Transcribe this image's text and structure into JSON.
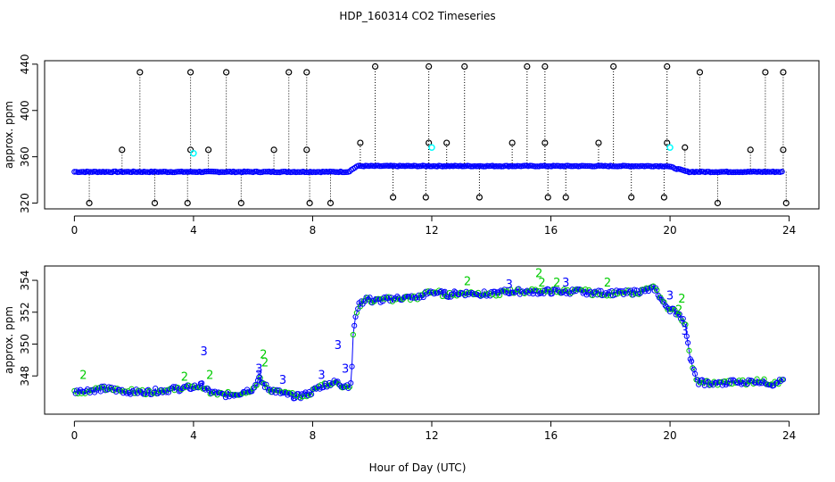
{
  "figure_title": "HDP_160314  CO2 Timeseries",
  "shared_xlabel": "Hour of Day (UTC)",
  "colors": {
    "frame": "#000000",
    "series_blue": "#0000ff",
    "series_green": "#00cc00",
    "series_cyan": "#00ffff",
    "outlier": "#000000"
  },
  "chart_data": [
    {
      "type": "scatter",
      "title": "",
      "xlabel": "",
      "ylabel": "approx. ppm",
      "xlim": [
        -1,
        25
      ],
      "ylim": [
        315,
        443
      ],
      "xticks": [
        0,
        4,
        8,
        12,
        16,
        20,
        24
      ],
      "yticks": [
        320,
        360,
        400,
        440
      ],
      "baseline_series": [
        {
          "x": 0.0,
          "y": 347
        },
        {
          "x": 9.2,
          "y": 347
        },
        {
          "x": 9.5,
          "y": 352
        },
        {
          "x": 19.9,
          "y": 352
        },
        {
          "x": 20.6,
          "y": 347
        },
        {
          "x": 23.8,
          "y": 347
        }
      ],
      "outlier_spikes": [
        {
          "x": 0.5,
          "y": 320
        },
        {
          "x": 1.6,
          "y": 366
        },
        {
          "x": 2.2,
          "y": 433
        },
        {
          "x": 2.7,
          "y": 320
        },
        {
          "x": 3.8,
          "y": 320
        },
        {
          "x": 3.9,
          "y": 366
        },
        {
          "x": 3.9,
          "y": 433
        },
        {
          "x": 4.5,
          "y": 366
        },
        {
          "x": 5.1,
          "y": 433
        },
        {
          "x": 5.6,
          "y": 320
        },
        {
          "x": 6.7,
          "y": 366
        },
        {
          "x": 7.2,
          "y": 433
        },
        {
          "x": 7.8,
          "y": 433
        },
        {
          "x": 7.8,
          "y": 366
        },
        {
          "x": 7.9,
          "y": 320
        },
        {
          "x": 8.6,
          "y": 320
        },
        {
          "x": 9.6,
          "y": 372
        },
        {
          "x": 10.1,
          "y": 438
        },
        {
          "x": 10.7,
          "y": 325
        },
        {
          "x": 11.8,
          "y": 325
        },
        {
          "x": 11.9,
          "y": 372
        },
        {
          "x": 11.9,
          "y": 438
        },
        {
          "x": 12.5,
          "y": 372
        },
        {
          "x": 13.1,
          "y": 438
        },
        {
          "x": 13.6,
          "y": 325
        },
        {
          "x": 14.7,
          "y": 372
        },
        {
          "x": 15.2,
          "y": 438
        },
        {
          "x": 15.8,
          "y": 438
        },
        {
          "x": 15.8,
          "y": 372
        },
        {
          "x": 15.9,
          "y": 325
        },
        {
          "x": 16.5,
          "y": 325
        },
        {
          "x": 17.6,
          "y": 372
        },
        {
          "x": 18.1,
          "y": 438
        },
        {
          "x": 18.7,
          "y": 325
        },
        {
          "x": 19.8,
          "y": 325
        },
        {
          "x": 19.9,
          "y": 372
        },
        {
          "x": 19.9,
          "y": 438
        },
        {
          "x": 20.5,
          "y": 368
        },
        {
          "x": 21.0,
          "y": 433
        },
        {
          "x": 21.6,
          "y": 320
        },
        {
          "x": 22.7,
          "y": 366
        },
        {
          "x": 23.2,
          "y": 433
        },
        {
          "x": 23.8,
          "y": 433
        },
        {
          "x": 23.8,
          "y": 366
        },
        {
          "x": 23.9,
          "y": 320
        }
      ],
      "cyan_markers": [
        {
          "x": 4.0,
          "y": 363
        },
        {
          "x": 12.0,
          "y": 368
        },
        {
          "x": 20.0,
          "y": 368
        }
      ]
    },
    {
      "type": "scatter",
      "title": "",
      "xlabel": "Hour of Day (UTC)",
      "ylabel": "approx. ppm",
      "xlim": [
        -1,
        25
      ],
      "ylim": [
        345.6,
        354.9
      ],
      "xticks": [
        0,
        4,
        8,
        12,
        16,
        20,
        24
      ],
      "yticks": [
        348,
        350,
        352,
        354
      ],
      "series": [
        {
          "name": "CO2",
          "x": [
            0.0,
            0.5,
            1.0,
            1.5,
            2.0,
            2.5,
            3.0,
            3.5,
            4.0,
            4.3,
            4.5,
            5.0,
            5.5,
            6.0,
            6.2,
            6.5,
            7.0,
            7.5,
            7.9,
            8.2,
            8.5,
            8.8,
            9.0,
            9.3,
            9.35,
            9.5,
            9.8,
            10.0,
            10.5,
            11.0,
            11.5,
            12.0,
            12.5,
            13.0,
            13.5,
            14.0,
            14.5,
            15.0,
            15.5,
            16.0,
            16.5,
            17.0,
            17.5,
            18.0,
            18.5,
            19.0,
            19.5,
            19.8,
            20.0,
            20.3,
            20.5,
            20.7,
            20.9,
            21.0,
            21.5,
            22.0,
            22.5,
            23.0,
            23.5,
            23.8
          ],
          "y": [
            347.0,
            347.1,
            347.2,
            347.1,
            347.0,
            347.0,
            347.1,
            347.2,
            347.3,
            347.4,
            347.0,
            346.8,
            346.9,
            347.2,
            347.8,
            347.2,
            346.9,
            346.7,
            346.9,
            347.3,
            347.5,
            347.6,
            347.4,
            347.4,
            350.5,
            352.3,
            352.9,
            352.7,
            352.8,
            352.9,
            352.9,
            353.3,
            353.1,
            353.2,
            353.2,
            353.1,
            353.3,
            353.3,
            353.3,
            353.3,
            353.3,
            353.3,
            353.2,
            353.2,
            353.2,
            353.3,
            353.5,
            352.5,
            352.2,
            351.9,
            351.3,
            349.0,
            347.6,
            347.6,
            347.5,
            347.6,
            347.6,
            347.7,
            347.5,
            347.7
          ]
        }
      ],
      "labels": [
        {
          "text": "2",
          "x": 0.3,
          "y": 347.8,
          "color": "green"
        },
        {
          "text": "2",
          "x": 3.7,
          "y": 347.7,
          "color": "green"
        },
        {
          "text": "3",
          "x": 4.35,
          "y": 349.3,
          "color": "blue"
        },
        {
          "text": "2",
          "x": 4.55,
          "y": 347.8,
          "color": "green"
        },
        {
          "text": "3",
          "x": 6.2,
          "y": 348.2,
          "color": "blue"
        },
        {
          "text": "2",
          "x": 6.4,
          "y": 348.6,
          "color": "green"
        },
        {
          "text": "2",
          "x": 6.35,
          "y": 349.1,
          "color": "green"
        },
        {
          "text": "3",
          "x": 6.2,
          "y": 347.8,
          "color": "blue"
        },
        {
          "text": "3",
          "x": 7.0,
          "y": 347.5,
          "color": "blue"
        },
        {
          "text": "3",
          "x": 8.3,
          "y": 347.8,
          "color": "blue"
        },
        {
          "text": "3",
          "x": 8.85,
          "y": 349.7,
          "color": "blue"
        },
        {
          "text": "3",
          "x": 9.1,
          "y": 348.2,
          "color": "blue"
        },
        {
          "text": "2",
          "x": 13.2,
          "y": 353.7,
          "color": "green"
        },
        {
          "text": "3",
          "x": 14.6,
          "y": 353.5,
          "color": "blue"
        },
        {
          "text": "2",
          "x": 15.6,
          "y": 354.2,
          "color": "green"
        },
        {
          "text": "2",
          "x": 15.7,
          "y": 353.6,
          "color": "green"
        },
        {
          "text": "2",
          "x": 16.2,
          "y": 353.6,
          "color": "green"
        },
        {
          "text": "3",
          "x": 16.5,
          "y": 353.6,
          "color": "blue"
        },
        {
          "text": "2",
          "x": 17.9,
          "y": 353.6,
          "color": "green"
        },
        {
          "text": "3",
          "x": 20.0,
          "y": 352.8,
          "color": "blue"
        },
        {
          "text": "2",
          "x": 20.4,
          "y": 352.6,
          "color": "green"
        },
        {
          "text": "2",
          "x": 20.3,
          "y": 351.9,
          "color": "green"
        },
        {
          "text": "3",
          "x": 20.5,
          "y": 350.6,
          "color": "blue"
        }
      ]
    }
  ]
}
